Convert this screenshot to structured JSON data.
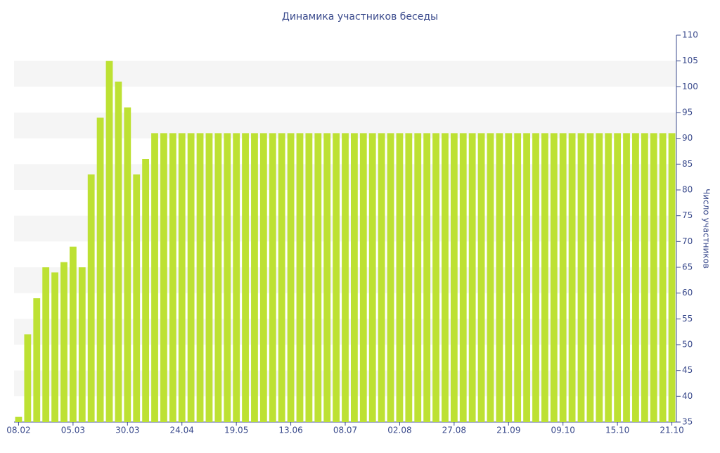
{
  "chart_data": {
    "type": "bar",
    "title": "Динамика участников беседы",
    "y_label": "Число участников",
    "categories": [
      "08.02",
      null,
      null,
      null,
      null,
      null,
      "05.03",
      null,
      null,
      null,
      null,
      null,
      "30.03",
      null,
      null,
      null,
      null,
      null,
      "24.04",
      null,
      null,
      null,
      null,
      null,
      "19.05",
      null,
      null,
      null,
      null,
      null,
      "13.06",
      null,
      null,
      null,
      null,
      null,
      "08.07",
      null,
      null,
      null,
      null,
      null,
      "02.08",
      null,
      null,
      null,
      null,
      null,
      "27.08",
      null,
      null,
      null,
      null,
      null,
      "21.09",
      null,
      null,
      null,
      null,
      null,
      "09.10",
      null,
      null,
      null,
      null,
      null,
      "15.10",
      null,
      null,
      null,
      null,
      null,
      "21.10"
    ],
    "values": [
      36,
      52,
      59,
      65,
      64,
      66,
      69,
      65,
      83,
      94,
      105,
      101,
      96,
      83,
      86,
      91,
      91,
      91,
      91,
      91,
      91,
      91,
      91,
      91,
      91,
      91,
      91,
      91,
      91,
      91,
      91,
      91,
      91,
      91,
      91,
      91,
      91,
      91,
      91,
      91,
      91,
      91,
      91,
      91,
      91,
      91,
      91,
      91,
      91,
      91,
      91,
      91,
      91,
      91,
      91,
      91,
      91,
      91,
      91,
      91,
      91,
      91,
      91,
      91,
      91,
      91,
      91,
      91,
      91,
      91,
      91,
      91,
      91
    ],
    "color": "#bde133",
    "ylim": [
      35,
      110
    ],
    "yticks": [
      35,
      40,
      45,
      50,
      55,
      60,
      65,
      70,
      75,
      80,
      85,
      90,
      95,
      100,
      105,
      110
    ],
    "grid": "bands",
    "y_axis_side": "right"
  }
}
